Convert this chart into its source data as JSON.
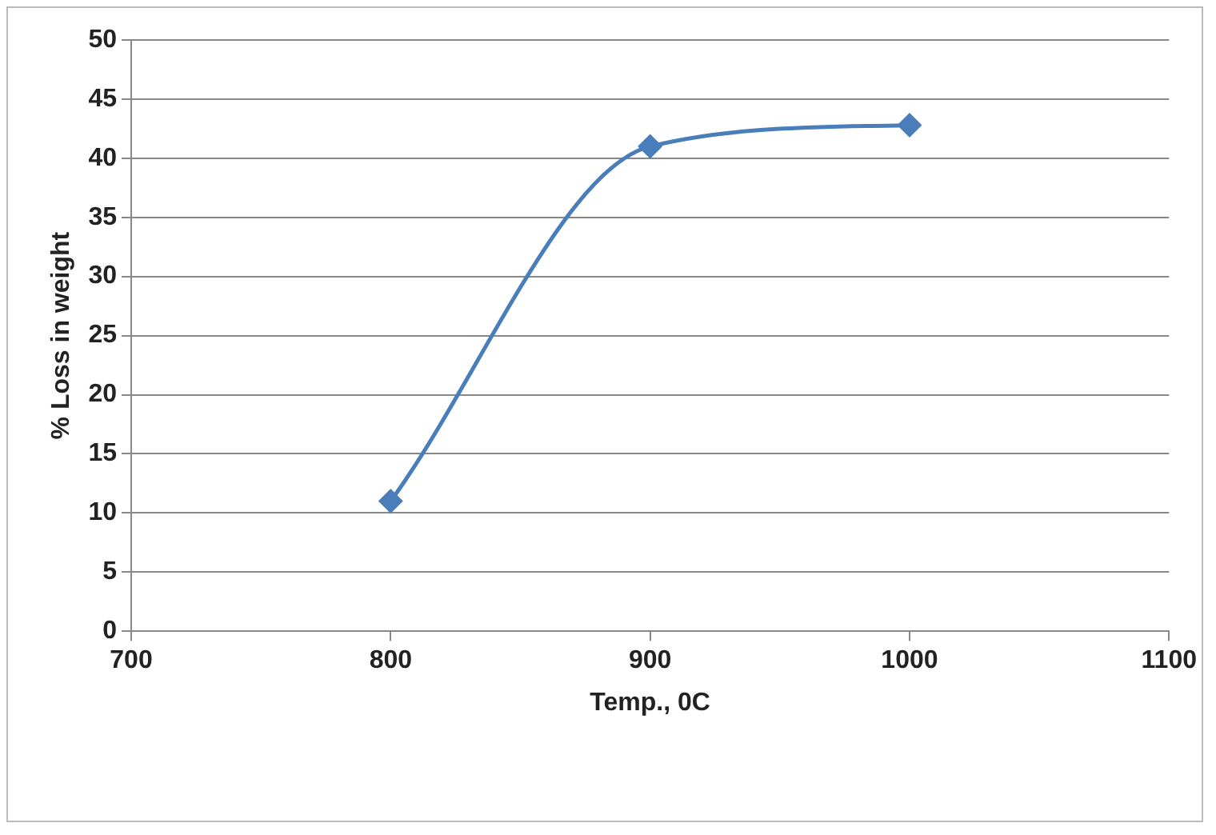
{
  "chart_data": {
    "type": "line",
    "xlabel": "Temp., 0C",
    "ylabel": "% Loss in weight",
    "x": [
      800,
      900,
      1000
    ],
    "series": [
      {
        "color": "#4a7ebb",
        "values": [
          11,
          41,
          42.8
        ]
      }
    ],
    "xlim": [
      700,
      1100
    ],
    "xticks": [
      700,
      800,
      900,
      1000,
      1100
    ],
    "ylim": [
      0,
      50
    ],
    "yticks": [
      0,
      5,
      10,
      15,
      20,
      25,
      30,
      35,
      40,
      45,
      50
    ],
    "grid": "y",
    "legend": false,
    "marker": "diamond",
    "line_style": "solid"
  }
}
